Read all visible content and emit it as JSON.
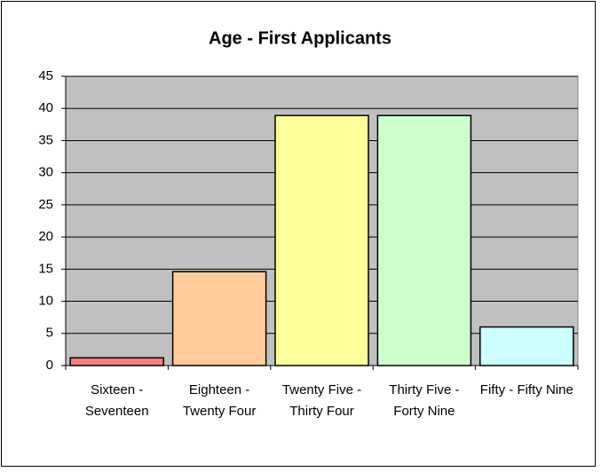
{
  "chart_data": {
    "type": "bar",
    "title": "Age - First Applicants",
    "categories": [
      "Sixteen - Seventeen",
      "Eighteen - Twenty Four",
      "Twenty Five - Thirty Four",
      "Thirty Five - Forty Nine",
      "Fifty - Fifty Nine"
    ],
    "values": [
      1.2,
      14.6,
      38.9,
      38.9,
      6
    ],
    "colors": [
      "#ff8080",
      "#ffcc99",
      "#ffff99",
      "#ccffcc",
      "#ccffff"
    ],
    "ylim": [
      0,
      45
    ],
    "yticks": [
      0,
      5,
      10,
      15,
      20,
      25,
      30,
      35,
      40,
      45
    ],
    "grid": true
  }
}
